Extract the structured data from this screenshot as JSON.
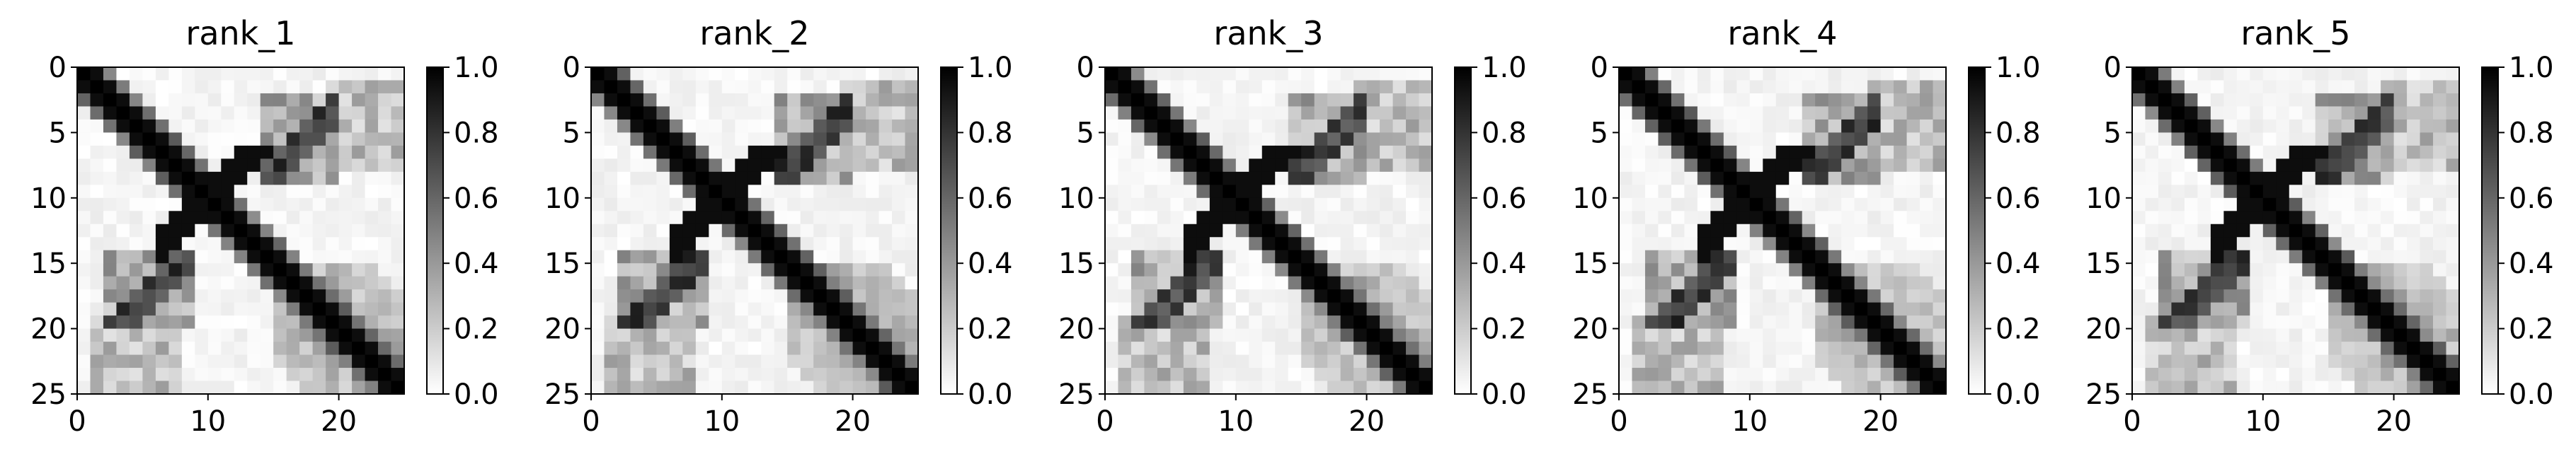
{
  "chart_data": [
    {
      "type": "heatmap",
      "title": "rank_1",
      "xticks": [
        0,
        10,
        20
      ],
      "yticks": [
        0,
        5,
        10,
        15,
        20,
        25
      ],
      "xlim": [
        0,
        25
      ],
      "ylim": [
        25,
        0
      ],
      "colorbar": {
        "min": 0.0,
        "max": 1.0,
        "ticks": [
          "0.0",
          "0.2",
          "0.4",
          "0.6",
          "0.8",
          "1.0"
        ],
        "colormap": "white-to-black"
      },
      "grid": false
    },
    {
      "type": "heatmap",
      "title": "rank_2",
      "xticks": [
        0,
        10,
        20
      ],
      "yticks": [
        0,
        5,
        10,
        15,
        20,
        25
      ],
      "xlim": [
        0,
        25
      ],
      "ylim": [
        25,
        0
      ],
      "colorbar": {
        "min": 0.0,
        "max": 1.0,
        "ticks": [
          "0.0",
          "0.2",
          "0.4",
          "0.6",
          "0.8",
          "1.0"
        ],
        "colormap": "white-to-black"
      },
      "grid": false
    },
    {
      "type": "heatmap",
      "title": "rank_3",
      "xticks": [
        0,
        10,
        20
      ],
      "yticks": [
        0,
        5,
        10,
        15,
        20,
        25
      ],
      "xlim": [
        0,
        25
      ],
      "ylim": [
        25,
        0
      ],
      "colorbar": {
        "min": 0.0,
        "max": 1.0,
        "ticks": [
          "0.0",
          "0.2",
          "0.4",
          "0.6",
          "0.8",
          "1.0"
        ],
        "colormap": "white-to-black"
      },
      "grid": false
    },
    {
      "type": "heatmap",
      "title": "rank_4",
      "xticks": [
        0,
        10,
        20
      ],
      "yticks": [
        0,
        5,
        10,
        15,
        20,
        25
      ],
      "xlim": [
        0,
        25
      ],
      "ylim": [
        25,
        0
      ],
      "colorbar": {
        "min": 0.0,
        "max": 1.0,
        "ticks": [
          "0.0",
          "0.2",
          "0.4",
          "0.6",
          "0.8",
          "1.0"
        ],
        "colormap": "white-to-black"
      },
      "grid": false
    },
    {
      "type": "heatmap",
      "title": "rank_5",
      "xticks": [
        0,
        10,
        20
      ],
      "yticks": [
        0,
        5,
        10,
        15,
        20,
        25
      ],
      "xlim": [
        0,
        25
      ],
      "ylim": [
        25,
        0
      ],
      "colorbar": {
        "min": 0.0,
        "max": 1.0,
        "ticks": [
          "0.0",
          "0.2",
          "0.4",
          "0.6",
          "0.8",
          "1.0"
        ],
        "colormap": "white-to-black"
      },
      "grid": false
    }
  ]
}
